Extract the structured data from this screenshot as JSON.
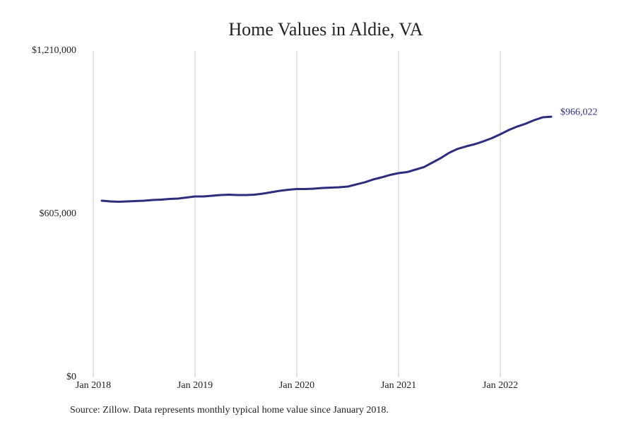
{
  "chart_data": {
    "type": "line",
    "title": "Home Values in Aldie, VA",
    "source": "Source: Zillow. Data represents monthly typical home value since January 2018.",
    "x": [
      "2018-02",
      "2018-03",
      "2018-04",
      "2018-05",
      "2018-06",
      "2018-07",
      "2018-08",
      "2018-09",
      "2018-10",
      "2018-11",
      "2018-12",
      "2019-01",
      "2019-02",
      "2019-03",
      "2019-04",
      "2019-05",
      "2019-06",
      "2019-07",
      "2019-08",
      "2019-09",
      "2019-10",
      "2019-11",
      "2019-12",
      "2020-01",
      "2020-02",
      "2020-03",
      "2020-04",
      "2020-05",
      "2020-06",
      "2020-07",
      "2020-08",
      "2020-09",
      "2020-10",
      "2020-11",
      "2020-12",
      "2021-01",
      "2021-02",
      "2021-03",
      "2021-04",
      "2021-05",
      "2021-06",
      "2021-07",
      "2021-08",
      "2021-09",
      "2021-10",
      "2021-11",
      "2021-12",
      "2022-01",
      "2022-02",
      "2022-03",
      "2022-04",
      "2022-05",
      "2022-06",
      "2022-07"
    ],
    "series": [
      {
        "name": "Typical home value",
        "color": "#2e2c7c",
        "values": [
          654800,
          652100,
          650800,
          652100,
          653400,
          654800,
          657400,
          658700,
          661300,
          662600,
          666500,
          670500,
          670500,
          673100,
          675700,
          677000,
          675700,
          675700,
          677000,
          680900,
          686200,
          691400,
          695300,
          698000,
          698000,
          699300,
          701900,
          703200,
          704500,
          707100,
          715000,
          722800,
          733300,
          741200,
          750300,
          756900,
          760800,
          770000,
          779200,
          796200,
          813200,
          832800,
          847200,
          856400,
          864300,
          874700,
          886500,
          900900,
          916700,
          929700,
          940200,
          953300,
          963800,
          966022
        ],
        "last_value_label": "$966,022"
      }
    ],
    "xlim": [
      "2018-01",
      "2022-07"
    ],
    "xticks": [
      {
        "value": "2018-01",
        "label": "Jan 2018"
      },
      {
        "value": "2019-01",
        "label": "Jan 2019"
      },
      {
        "value": "2020-01",
        "label": "Jan 2020"
      },
      {
        "value": "2021-01",
        "label": "Jan 2021"
      },
      {
        "value": "2022-01",
        "label": "Jan 2022"
      }
    ],
    "ylim": [
      0,
      1210000
    ],
    "yticks": [
      {
        "value": 0,
        "label": "$0"
      },
      {
        "value": 605000,
        "label": "$605,000"
      },
      {
        "value": 1210000,
        "label": "$1,210,000"
      }
    ],
    "grid": "x"
  }
}
